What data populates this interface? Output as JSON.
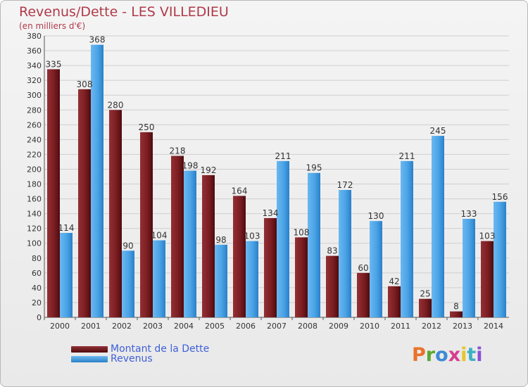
{
  "title": "Revenus/Dette - LES VILLEDIEU",
  "subtitle": "(en milliers d'€)",
  "colors": {
    "debt": "#7b1e22",
    "revenue": "#4aa3e6",
    "title": "#b03a4a",
    "legend_text": "#3e5fd8"
  },
  "legend": [
    {
      "label": "Montant de la Dette",
      "series": "debt"
    },
    {
      "label": "Revenus",
      "series": "revenue"
    }
  ],
  "logo": {
    "text": "Proxiti"
  },
  "chart_data": {
    "type": "bar",
    "title": "Revenus/Dette - LES VILLEDIEU",
    "subtitle": "(en milliers d'€)",
    "categories": [
      "2000",
      "2001",
      "2002",
      "2003",
      "2004",
      "2005",
      "2006",
      "2007",
      "2008",
      "2009",
      "2010",
      "2011",
      "2012",
      "2013",
      "2014"
    ],
    "series": [
      {
        "name": "Montant de la Dette",
        "key": "debt",
        "values": [
          335,
          308,
          280,
          250,
          218,
          192,
          164,
          134,
          108,
          83,
          60,
          42,
          25,
          8,
          103
        ]
      },
      {
        "name": "Revenus",
        "key": "revenue",
        "values": [
          114,
          368,
          90,
          104,
          198,
          98,
          103,
          211,
          195,
          172,
          130,
          211,
          245,
          133,
          156
        ]
      }
    ],
    "ylim": [
      0,
      380
    ],
    "yticks": [
      0,
      20,
      40,
      60,
      80,
      100,
      120,
      140,
      160,
      180,
      200,
      220,
      240,
      260,
      280,
      300,
      320,
      340,
      360,
      380
    ],
    "grid": true,
    "legend_position": "bottom-left"
  }
}
